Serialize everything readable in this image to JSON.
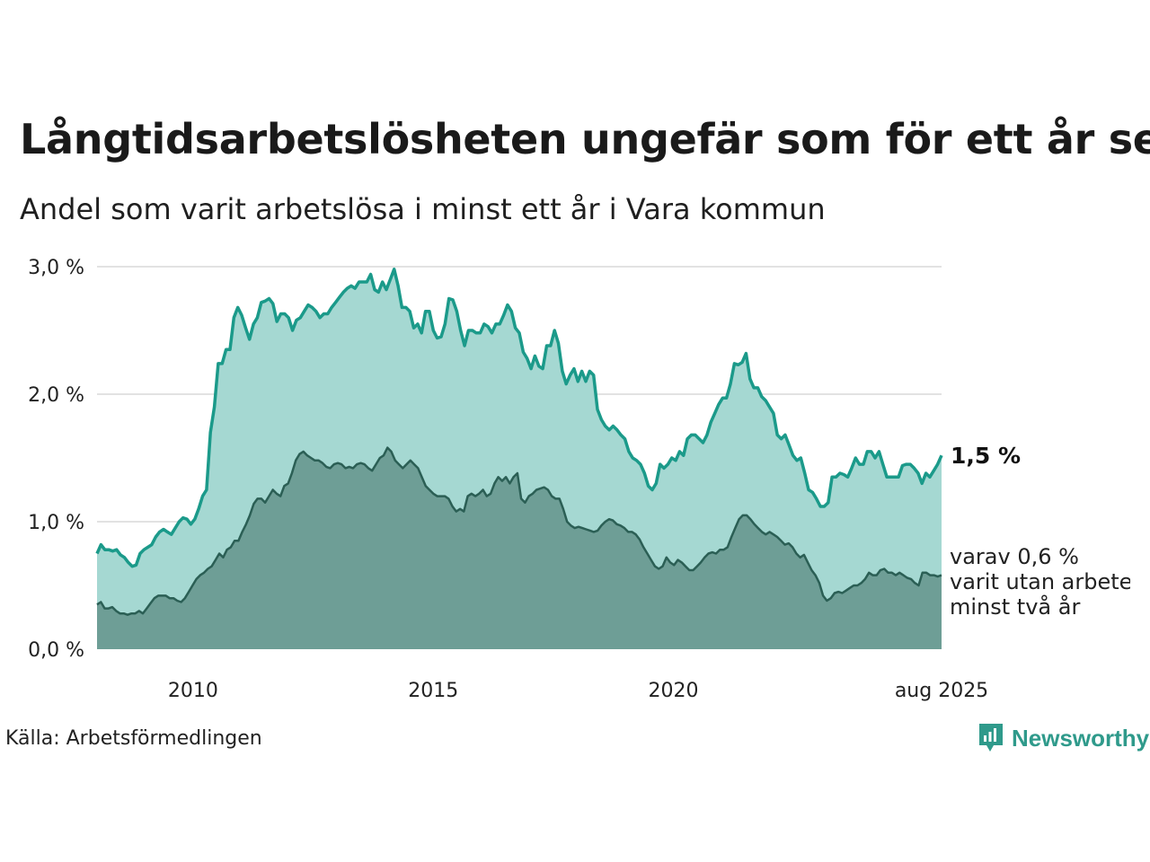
{
  "header": {
    "title": "Långtidsarbetslösheten ungefär som för ett år sen",
    "subtitle": "Andel som varit arbetslösa i minst ett år i Vara kommun"
  },
  "footer": {
    "source": "Källa: Arbetsförmedlingen",
    "brand": "Newsworthy",
    "brand_icon": "newsworthy-logo-icon"
  },
  "colors": {
    "one_year_line": "#1b9a8a",
    "one_year_fill": "#a5d8d2",
    "two_year_line": "#2b5f55",
    "two_year_fill": "#6e9e96",
    "grid": "#e2e2e2"
  },
  "chart_data": {
    "type": "area",
    "x_start": "2008-01",
    "x_end": "2025-08",
    "x_tick_labels": [
      "2010",
      "2015",
      "2020",
      "aug 2025"
    ],
    "y_tick_labels": [
      "0,0 %",
      "1,0 %",
      "2,0 %",
      "3,0 %"
    ],
    "y_ticks": [
      0,
      1,
      2,
      3
    ],
    "ylim": [
      0,
      3
    ],
    "grid": true,
    "series": [
      {
        "values": [
          0.75,
          0.82,
          0.78,
          0.78,
          0.77,
          0.78,
          0.74,
          0.72,
          0.68,
          0.65,
          0.66,
          0.75,
          0.78,
          0.8,
          0.82,
          0.88,
          0.92,
          0.94,
          0.92,
          0.9,
          0.95,
          1.0,
          1.03,
          1.02,
          0.98,
          1.02,
          1.1,
          1.2,
          1.25,
          1.7,
          1.9,
          2.24,
          2.24,
          2.35,
          2.35,
          2.6,
          2.68,
          2.62,
          2.52,
          2.43,
          2.55,
          2.6,
          2.72,
          2.73,
          2.75,
          2.71,
          2.57,
          2.63,
          2.63,
          2.6,
          2.5,
          2.58,
          2.6,
          2.65,
          2.7,
          2.68,
          2.65,
          2.6,
          2.63,
          2.63,
          2.68,
          2.72,
          2.76,
          2.8,
          2.83,
          2.85,
          2.83,
          2.88,
          2.88,
          2.88,
          2.94,
          2.82,
          2.8,
          2.88,
          2.82,
          2.9,
          2.98,
          2.85,
          2.68,
          2.68,
          2.65,
          2.52,
          2.55,
          2.48,
          2.65,
          2.65,
          2.5,
          2.44,
          2.45,
          2.55,
          2.75,
          2.74,
          2.65,
          2.5,
          2.38,
          2.5,
          2.5,
          2.48,
          2.48,
          2.55,
          2.53,
          2.48,
          2.55,
          2.55,
          2.62,
          2.7,
          2.65,
          2.52,
          2.48,
          2.33,
          2.28,
          2.2,
          2.3,
          2.22,
          2.2,
          2.38,
          2.38,
          2.5,
          2.4,
          2.18,
          2.08,
          2.15,
          2.2,
          2.1,
          2.18,
          2.1,
          2.18,
          2.15,
          1.88,
          1.8,
          1.75,
          1.72,
          1.75,
          1.72,
          1.68,
          1.65,
          1.55,
          1.5,
          1.48,
          1.45,
          1.38,
          1.28,
          1.25,
          1.3,
          1.45,
          1.42,
          1.45,
          1.5,
          1.48,
          1.55,
          1.52,
          1.65,
          1.68,
          1.68,
          1.65,
          1.62,
          1.68,
          1.78,
          1.85,
          1.92,
          1.97,
          1.97,
          2.08,
          2.24,
          2.23,
          2.25,
          2.32,
          2.12,
          2.05,
          2.05,
          1.98,
          1.95,
          1.9,
          1.85,
          1.68,
          1.65,
          1.68,
          1.6,
          1.52,
          1.48,
          1.5,
          1.38,
          1.25,
          1.23,
          1.18,
          1.12,
          1.12,
          1.15,
          1.35,
          1.35,
          1.38,
          1.37,
          1.35,
          1.42,
          1.5,
          1.45,
          1.45,
          1.55,
          1.55,
          1.5,
          1.55,
          1.45,
          1.35,
          1.35,
          1.35,
          1.35,
          1.44,
          1.45,
          1.45,
          1.42,
          1.38,
          1.3,
          1.38,
          1.35,
          1.4,
          1.45,
          1.52
        ]
      },
      {
        "values": [
          0.35,
          0.37,
          0.32,
          0.32,
          0.33,
          0.3,
          0.28,
          0.28,
          0.27,
          0.28,
          0.28,
          0.3,
          0.28,
          0.32,
          0.36,
          0.4,
          0.42,
          0.42,
          0.42,
          0.4,
          0.4,
          0.38,
          0.37,
          0.4,
          0.45,
          0.5,
          0.55,
          0.58,
          0.6,
          0.63,
          0.65,
          0.7,
          0.75,
          0.72,
          0.78,
          0.8,
          0.85,
          0.85,
          0.92,
          0.98,
          1.05,
          1.14,
          1.18,
          1.18,
          1.15,
          1.2,
          1.25,
          1.22,
          1.2,
          1.28,
          1.3,
          1.38,
          1.48,
          1.53,
          1.55,
          1.52,
          1.5,
          1.48,
          1.48,
          1.46,
          1.43,
          1.42,
          1.45,
          1.46,
          1.45,
          1.42,
          1.43,
          1.42,
          1.45,
          1.46,
          1.45,
          1.42,
          1.4,
          1.45,
          1.5,
          1.52,
          1.58,
          1.55,
          1.48,
          1.45,
          1.42,
          1.45,
          1.48,
          1.45,
          1.42,
          1.35,
          1.28,
          1.25,
          1.22,
          1.2,
          1.2,
          1.2,
          1.18,
          1.12,
          1.08,
          1.1,
          1.08,
          1.2,
          1.22,
          1.2,
          1.22,
          1.25,
          1.2,
          1.22,
          1.3,
          1.35,
          1.32,
          1.35,
          1.3,
          1.35,
          1.38,
          1.18,
          1.15,
          1.2,
          1.22,
          1.25,
          1.26,
          1.27,
          1.25,
          1.2,
          1.18,
          1.18,
          1.1,
          1.0,
          0.97,
          0.95,
          0.96,
          0.95,
          0.94,
          0.93,
          0.92,
          0.93,
          0.97,
          1.0,
          1.02,
          1.01,
          0.98,
          0.97,
          0.95,
          0.92,
          0.92,
          0.9,
          0.86,
          0.8,
          0.75,
          0.7,
          0.65,
          0.63,
          0.65,
          0.72,
          0.68,
          0.66,
          0.7,
          0.68,
          0.65,
          0.62,
          0.62,
          0.65,
          0.68,
          0.72,
          0.75,
          0.76,
          0.75,
          0.78,
          0.78,
          0.8,
          0.88,
          0.95,
          1.02,
          1.05,
          1.05,
          1.02,
          0.98,
          0.95,
          0.92,
          0.9,
          0.92,
          0.9,
          0.88,
          0.85,
          0.82,
          0.83,
          0.8,
          0.75,
          0.72,
          0.74,
          0.68,
          0.62,
          0.58,
          0.52,
          0.42,
          0.38,
          0.4,
          0.44,
          0.45,
          0.44,
          0.46,
          0.48,
          0.5,
          0.5,
          0.52,
          0.55,
          0.6,
          0.58,
          0.58,
          0.62,
          0.63,
          0.6,
          0.6,
          0.58,
          0.6,
          0.58,
          0.56,
          0.55,
          0.52,
          0.5,
          0.6,
          0.6,
          0.58,
          0.58,
          0.57,
          0.58
        ]
      }
    ],
    "end_labels": {
      "main": "1,5 %",
      "sub_line1": "varav 0,6 %",
      "sub_line2": "varit utan arbete",
      "sub_line3": "minst två år"
    }
  }
}
